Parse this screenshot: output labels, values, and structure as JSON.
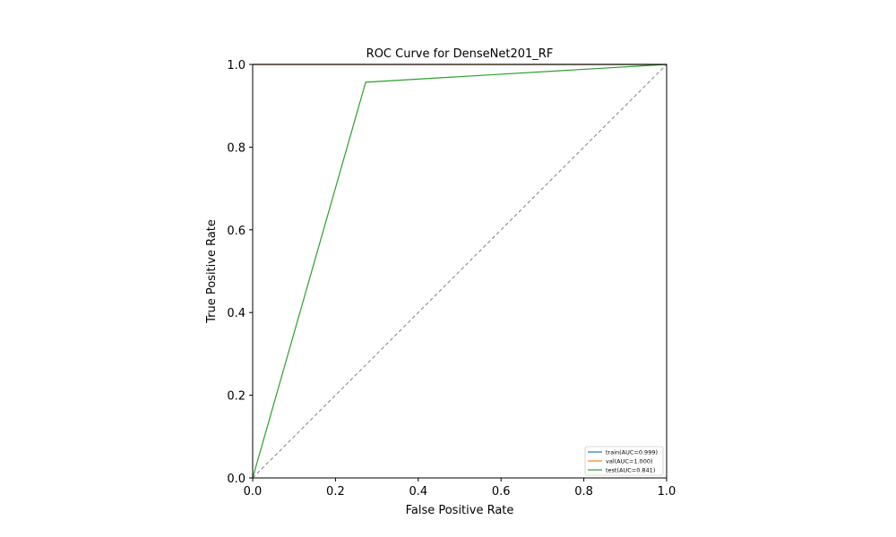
{
  "chart_data": {
    "type": "line",
    "title": "ROC Curve for DenseNet201_RF",
    "xlabel": "False Positive Rate",
    "ylabel": "True Positive Rate",
    "xlim": [
      0.0,
      1.0
    ],
    "ylim": [
      0.0,
      1.0
    ],
    "xticks": [
      0.0,
      0.2,
      0.4,
      0.6,
      0.8,
      1.0
    ],
    "yticks": [
      0.0,
      0.2,
      0.4,
      0.6,
      0.8,
      1.0
    ],
    "xtick_labels": [
      "0.0",
      "0.2",
      "0.4",
      "0.6",
      "0.8",
      "1.0"
    ],
    "ytick_labels": [
      "0.0",
      "0.2",
      "0.4",
      "0.6",
      "0.8",
      "1.0"
    ],
    "grid": false,
    "legend_position": "lower-right",
    "series": [
      {
        "name": "train(AUC=0.999)",
        "color": "#1f77b4",
        "x": [
          0.0,
          1.0
        ],
        "y": [
          1.0,
          1.0
        ]
      },
      {
        "name": "val(AUC=1.000)",
        "color": "#ff7f0e",
        "x": [
          0.0,
          1.0
        ],
        "y": [
          1.0,
          1.0
        ]
      },
      {
        "name": "test(AUC=0.841)",
        "color": "#2ca02c",
        "x": [
          0.0,
          0.273,
          1.0
        ],
        "y": [
          0.0,
          0.957,
          1.0
        ]
      }
    ],
    "reference_line": {
      "x": [
        0.0,
        1.0
      ],
      "y": [
        0.0,
        1.0
      ],
      "color": "#808080",
      "style": "dashed"
    }
  }
}
